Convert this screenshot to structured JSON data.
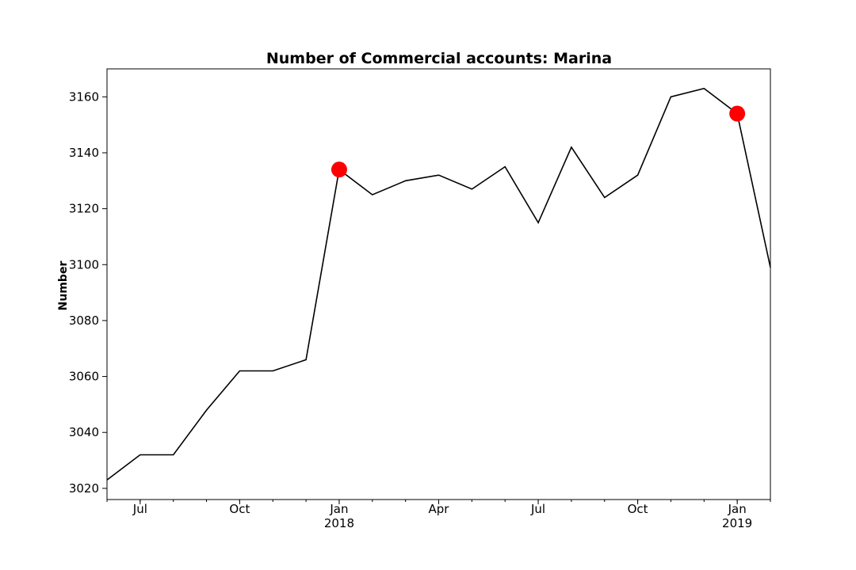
{
  "chart_data": {
    "type": "line",
    "title": "Number of Commercial accounts: Marina",
    "xlabel": "",
    "ylabel": "Number",
    "x": [
      "2017-06",
      "2017-07",
      "2017-08",
      "2017-09",
      "2017-10",
      "2017-11",
      "2017-12",
      "2018-01",
      "2018-02",
      "2018-03",
      "2018-04",
      "2018-05",
      "2018-06",
      "2018-07",
      "2018-08",
      "2018-09",
      "2018-10",
      "2018-11",
      "2018-12",
      "2019-01",
      "2019-02"
    ],
    "series": [
      {
        "values": [
          3023,
          3032,
          3032,
          3048,
          3062,
          3062,
          3066,
          3134,
          3125,
          3130,
          3132,
          3127,
          3135,
          3115,
          3142,
          3124,
          3132,
          3160,
          3163,
          3154,
          3099
        ],
        "color": "#000000"
      }
    ],
    "highlights": [
      {
        "x": "2018-01",
        "value": 3134,
        "color": "#ff0000"
      },
      {
        "x": "2019-01",
        "value": 3154,
        "color": "#ff0000"
      }
    ],
    "ylim": [
      3016,
      3170
    ],
    "xlim": [
      "2017-06",
      "2019-02"
    ],
    "yticks": [
      3020,
      3040,
      3060,
      3080,
      3100,
      3120,
      3140,
      3160
    ],
    "xticks": [
      {
        "x": "2017-07",
        "label": "Jul"
      },
      {
        "x": "2017-10",
        "label": "Oct"
      },
      {
        "x": "2018-01",
        "label": "Jan",
        "sublabel": "2018"
      },
      {
        "x": "2018-04",
        "label": "Apr"
      },
      {
        "x": "2018-07",
        "label": "Jul"
      },
      {
        "x": "2018-10",
        "label": "Oct"
      },
      {
        "x": "2019-01",
        "label": "Jan",
        "sublabel": "2019"
      }
    ],
    "grid": false,
    "legend": "none"
  }
}
